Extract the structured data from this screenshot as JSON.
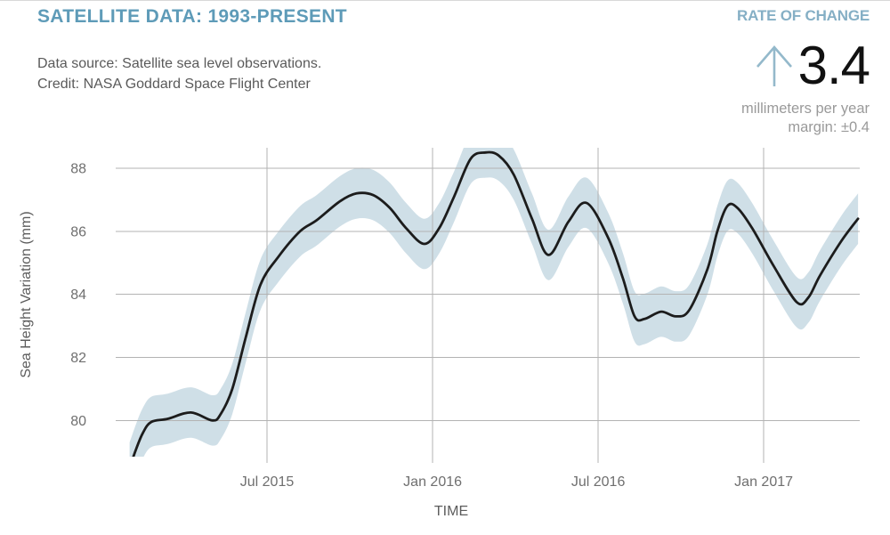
{
  "header": {
    "title": "SATELLITE DATA: 1993-PRESENT",
    "subtitle_line1": "Data source: Satellite sea level observations.",
    "subtitle_line2": "Credit: NASA Goddard Space Flight Center",
    "rate": {
      "label": "RATE OF CHANGE",
      "value": "3.4",
      "unit": "millimeters per year",
      "margin": "margin: ±0.4",
      "trend_icon": "up-arrow"
    }
  },
  "colors": {
    "title": "#5E9BB8",
    "rate_label": "#85AFC5",
    "arrow": "#94B9CB",
    "subtitle": "#5A5A5A",
    "unit_text": "#9A9A9A",
    "tick_text": "#6F6F6F",
    "axis_title": "#5C5C5C",
    "grid": "#B3B3B3",
    "band": "#CFDFE7",
    "line": "#1C1C1C"
  },
  "chart_data": {
    "type": "line",
    "title": "SATELLITE DATA: 1993-PRESENT",
    "xlabel": "TIME",
    "ylabel": "Sea Height Variation (mm)",
    "grid": true,
    "legend_position": "none",
    "x_ticks": [
      {
        "label": "Jul 2015",
        "year": 2015.5
      },
      {
        "label": "Jan 2016",
        "year": 2016.0
      },
      {
        "label": "Jul 2016",
        "year": 2016.5
      },
      {
        "label": "Jan 2017",
        "year": 2017.0
      }
    ],
    "y_ticks": [
      80,
      82,
      84,
      86,
      88
    ],
    "x_range_years": [
      2015.043,
      2017.29
    ],
    "y_range_mm": [
      78.85,
      88.65
    ],
    "series": [
      {
        "name": "Sea height variation (mm)",
        "uncertainty_mm": 0.8,
        "points": [
          [
            2015.085,
            78.5
          ],
          [
            2015.105,
            79.1
          ],
          [
            2015.125,
            79.6
          ],
          [
            2015.15,
            79.95
          ],
          [
            2015.2,
            80.05
          ],
          [
            2015.27,
            80.25
          ],
          [
            2015.335,
            80.0
          ],
          [
            2015.36,
            80.2
          ],
          [
            2015.395,
            81.0
          ],
          [
            2015.435,
            82.6
          ],
          [
            2015.48,
            84.3
          ],
          [
            2015.535,
            85.2
          ],
          [
            2015.6,
            86.0
          ],
          [
            2015.65,
            86.35
          ],
          [
            2015.72,
            86.95
          ],
          [
            2015.77,
            87.2
          ],
          [
            2015.82,
            87.15
          ],
          [
            2015.87,
            86.75
          ],
          [
            2015.92,
            86.1
          ],
          [
            2015.975,
            85.6
          ],
          [
            2016.02,
            86.1
          ],
          [
            2016.065,
            87.1
          ],
          [
            2016.115,
            88.3
          ],
          [
            2016.16,
            88.5
          ],
          [
            2016.2,
            88.4
          ],
          [
            2016.245,
            87.8
          ],
          [
            2016.3,
            86.4
          ],
          [
            2016.35,
            85.25
          ],
          [
            2016.41,
            86.3
          ],
          [
            2016.465,
            86.9
          ],
          [
            2016.53,
            85.8
          ],
          [
            2016.575,
            84.5
          ],
          [
            2016.61,
            83.3
          ],
          [
            2016.64,
            83.22
          ],
          [
            2016.69,
            83.45
          ],
          [
            2016.735,
            83.3
          ],
          [
            2016.775,
            83.5
          ],
          [
            2016.83,
            84.8
          ],
          [
            2016.86,
            86.0
          ],
          [
            2016.89,
            86.8
          ],
          [
            2016.92,
            86.75
          ],
          [
            2016.965,
            86.1
          ],
          [
            2017.03,
            84.9
          ],
          [
            2017.1,
            83.75
          ],
          [
            2017.135,
            83.9
          ],
          [
            2017.17,
            84.6
          ],
          [
            2017.235,
            85.7
          ],
          [
            2017.285,
            86.4
          ]
        ]
      }
    ]
  }
}
